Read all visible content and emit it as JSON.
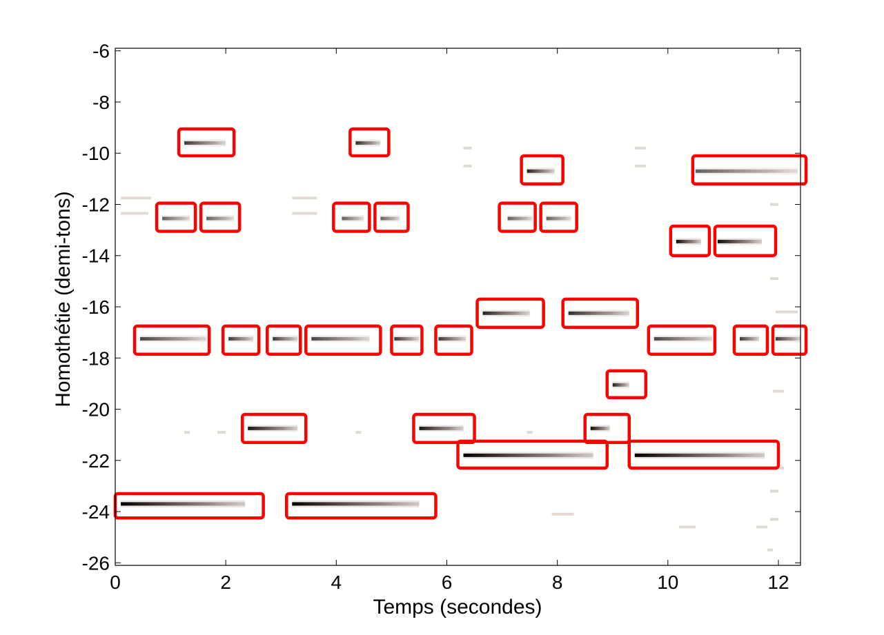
{
  "chart_data": {
    "type": "heatmap",
    "title": "",
    "xlabel": "Temps (secondes)",
    "ylabel": "Homothétie (demi-tons)",
    "xlim": [
      0,
      12.4
    ],
    "ylim": [
      -26.1,
      -5.9
    ],
    "xticks": [
      0,
      2,
      4,
      6,
      8,
      10,
      12
    ],
    "yticks": [
      -6,
      -8,
      -10,
      -12,
      -14,
      -16,
      -18,
      -20,
      -22,
      -24,
      -26
    ],
    "grid": false,
    "note_color": "#3a2420",
    "box_color": "#ff0000",
    "notes": [
      {
        "t0": 0.1,
        "t1": 2.35,
        "pitch": -23.7,
        "strength": 1.0
      },
      {
        "t0": 3.2,
        "t1": 5.5,
        "pitch": -23.7,
        "strength": 1.0
      },
      {
        "t0": 0.45,
        "t1": 1.65,
        "pitch": -17.25,
        "strength": 0.7
      },
      {
        "t0": 2.05,
        "t1": 2.5,
        "pitch": -17.25,
        "strength": 0.75
      },
      {
        "t0": 2.85,
        "t1": 3.3,
        "pitch": -17.25,
        "strength": 0.75
      },
      {
        "t0": 3.55,
        "t1": 4.6,
        "pitch": -17.25,
        "strength": 0.7
      },
      {
        "t0": 5.05,
        "t1": 5.5,
        "pitch": -17.25,
        "strength": 0.75
      },
      {
        "t0": 5.85,
        "t1": 6.35,
        "pitch": -17.25,
        "strength": 0.75
      },
      {
        "t0": 9.75,
        "t1": 10.8,
        "pitch": -17.25,
        "strength": 0.7
      },
      {
        "t0": 11.3,
        "t1": 11.65,
        "pitch": -17.25,
        "strength": 0.75
      },
      {
        "t0": 11.95,
        "t1": 12.4,
        "pitch": -17.25,
        "strength": 0.75
      },
      {
        "t0": 1.25,
        "t1": 2.0,
        "pitch": -9.6,
        "strength": 0.75
      },
      {
        "t0": 4.35,
        "t1": 4.8,
        "pitch": -9.6,
        "strength": 0.8
      },
      {
        "t0": 0.85,
        "t1": 1.35,
        "pitch": -12.55,
        "strength": 0.6
      },
      {
        "t0": 1.65,
        "t1": 2.15,
        "pitch": -12.55,
        "strength": 0.6
      },
      {
        "t0": 4.1,
        "t1": 4.5,
        "pitch": -12.55,
        "strength": 0.6
      },
      {
        "t0": 4.8,
        "t1": 5.15,
        "pitch": -12.55,
        "strength": 0.6
      },
      {
        "t0": 7.1,
        "t1": 7.55,
        "pitch": -12.55,
        "strength": 0.6
      },
      {
        "t0": 7.8,
        "t1": 8.25,
        "pitch": -12.55,
        "strength": 0.6
      },
      {
        "t0": 2.4,
        "t1": 3.3,
        "pitch": -20.75,
        "strength": 0.9
      },
      {
        "t0": 5.5,
        "t1": 6.3,
        "pitch": -20.75,
        "strength": 0.9
      },
      {
        "t0": 8.6,
        "t1": 8.95,
        "pitch": -20.75,
        "strength": 0.95
      },
      {
        "t0": 6.3,
        "t1": 8.65,
        "pitch": -21.8,
        "strength": 1.0
      },
      {
        "t0": 9.4,
        "t1": 11.75,
        "pitch": -21.8,
        "strength": 1.0
      },
      {
        "t0": 6.65,
        "t1": 7.5,
        "pitch": -16.25,
        "strength": 0.85
      },
      {
        "t0": 8.2,
        "t1": 9.3,
        "pitch": -16.25,
        "strength": 0.8
      },
      {
        "t0": 9.0,
        "t1": 9.3,
        "pitch": -19.05,
        "strength": 0.85
      },
      {
        "t0": 7.45,
        "t1": 7.95,
        "pitch": -10.7,
        "strength": 0.85
      },
      {
        "t0": 10.5,
        "t1": 12.35,
        "pitch": -10.7,
        "strength": 0.6
      },
      {
        "t0": 10.15,
        "t1": 10.6,
        "pitch": -13.45,
        "strength": 0.95
      },
      {
        "t0": 10.9,
        "t1": 11.7,
        "pitch": -13.45,
        "strength": 0.95
      }
    ],
    "faint_notes": [
      {
        "t0": 0.1,
        "t1": 0.65,
        "pitch": -11.75
      },
      {
        "t0": 0.1,
        "t1": 0.6,
        "pitch": -12.35
      },
      {
        "t0": 3.2,
        "t1": 3.65,
        "pitch": -11.75
      },
      {
        "t0": 3.2,
        "t1": 3.65,
        "pitch": -12.35
      },
      {
        "t0": 6.3,
        "t1": 6.45,
        "pitch": -9.8
      },
      {
        "t0": 6.3,
        "t1": 6.45,
        "pitch": -10.5
      },
      {
        "t0": 9.4,
        "t1": 9.6,
        "pitch": -9.8
      },
      {
        "t0": 9.4,
        "t1": 9.6,
        "pitch": -10.5
      },
      {
        "t0": 1.25,
        "t1": 1.35,
        "pitch": -20.9
      },
      {
        "t0": 1.85,
        "t1": 2.0,
        "pitch": -20.9
      },
      {
        "t0": 4.35,
        "t1": 4.45,
        "pitch": -20.9
      },
      {
        "t0": 7.45,
        "t1": 7.55,
        "pitch": -20.9
      },
      {
        "t0": 11.95,
        "t1": 12.35,
        "pitch": -16.2
      },
      {
        "t0": 11.9,
        "t1": 12.1,
        "pitch": -19.3
      },
      {
        "t0": 11.85,
        "t1": 12.1,
        "pitch": -22.3
      },
      {
        "t0": 11.85,
        "t1": 12.0,
        "pitch": -23.2
      },
      {
        "t0": 11.85,
        "t1": 12.0,
        "pitch": -24.3
      },
      {
        "t0": 10.2,
        "t1": 10.5,
        "pitch": -24.6
      },
      {
        "t0": 11.6,
        "t1": 11.8,
        "pitch": -24.6
      },
      {
        "t0": 11.8,
        "t1": 11.9,
        "pitch": -25.5
      },
      {
        "t0": 7.9,
        "t1": 8.3,
        "pitch": -24.1
      },
      {
        "t0": 11.85,
        "t1": 12.0,
        "pitch": -12.0
      },
      {
        "t0": 11.85,
        "t1": 12.0,
        "pitch": -14.9
      }
    ],
    "boxes": [
      {
        "t0": 0.0,
        "t1": 2.68,
        "p_top": -23.3,
        "p_bot": -24.25
      },
      {
        "t0": 3.1,
        "t1": 5.8,
        "p_top": -23.3,
        "p_bot": -24.25
      },
      {
        "t0": 0.35,
        "t1": 1.7,
        "p_top": -16.75,
        "p_bot": -17.85
      },
      {
        "t0": 1.95,
        "t1": 2.6,
        "p_top": -16.75,
        "p_bot": -17.85
      },
      {
        "t0": 2.75,
        "t1": 3.35,
        "p_top": -16.75,
        "p_bot": -17.85
      },
      {
        "t0": 3.45,
        "t1": 4.8,
        "p_top": -16.75,
        "p_bot": -17.85
      },
      {
        "t0": 5.0,
        "t1": 5.55,
        "p_top": -16.75,
        "p_bot": -17.85
      },
      {
        "t0": 5.8,
        "t1": 6.45,
        "p_top": -16.75,
        "p_bot": -17.85
      },
      {
        "t0": 9.65,
        "t1": 10.85,
        "p_top": -16.75,
        "p_bot": -17.85
      },
      {
        "t0": 11.2,
        "t1": 11.8,
        "p_top": -16.75,
        "p_bot": -17.85
      },
      {
        "t0": 11.9,
        "t1": 12.5,
        "p_top": -16.75,
        "p_bot": -17.85
      },
      {
        "t0": 1.15,
        "t1": 2.15,
        "p_top": -9.05,
        "p_bot": -10.1
      },
      {
        "t0": 4.25,
        "t1": 4.95,
        "p_top": -9.05,
        "p_bot": -10.1
      },
      {
        "t0": 0.75,
        "t1": 1.45,
        "p_top": -11.95,
        "p_bot": -13.05
      },
      {
        "t0": 1.55,
        "t1": 2.25,
        "p_top": -11.95,
        "p_bot": -13.05
      },
      {
        "t0": 3.95,
        "t1": 4.6,
        "p_top": -11.95,
        "p_bot": -13.05
      },
      {
        "t0": 4.7,
        "t1": 5.3,
        "p_top": -11.95,
        "p_bot": -13.05
      },
      {
        "t0": 6.95,
        "t1": 7.6,
        "p_top": -11.95,
        "p_bot": -13.05
      },
      {
        "t0": 7.7,
        "t1": 8.35,
        "p_top": -11.95,
        "p_bot": -13.05
      },
      {
        "t0": 2.3,
        "t1": 3.45,
        "p_top": -20.2,
        "p_bot": -21.3
      },
      {
        "t0": 5.4,
        "t1": 6.5,
        "p_top": -20.2,
        "p_bot": -21.3
      },
      {
        "t0": 8.5,
        "t1": 9.3,
        "p_top": -20.2,
        "p_bot": -21.3
      },
      {
        "t0": 6.2,
        "t1": 8.9,
        "p_top": -21.25,
        "p_bot": -22.3
      },
      {
        "t0": 9.3,
        "t1": 12.0,
        "p_top": -21.25,
        "p_bot": -22.3
      },
      {
        "t0": 6.55,
        "t1": 7.75,
        "p_top": -15.7,
        "p_bot": -16.8
      },
      {
        "t0": 8.1,
        "t1": 9.45,
        "p_top": -15.7,
        "p_bot": -16.8
      },
      {
        "t0": 8.9,
        "t1": 9.6,
        "p_top": -18.5,
        "p_bot": -19.55
      },
      {
        "t0": 7.35,
        "t1": 8.1,
        "p_top": -10.1,
        "p_bot": -11.2
      },
      {
        "t0": 10.45,
        "t1": 12.5,
        "p_top": -10.1,
        "p_bot": -11.2
      },
      {
        "t0": 10.05,
        "t1": 10.75,
        "p_top": -12.85,
        "p_bot": -14.0
      },
      {
        "t0": 10.85,
        "t1": 11.95,
        "p_top": -12.85,
        "p_bot": -14.0
      }
    ]
  }
}
